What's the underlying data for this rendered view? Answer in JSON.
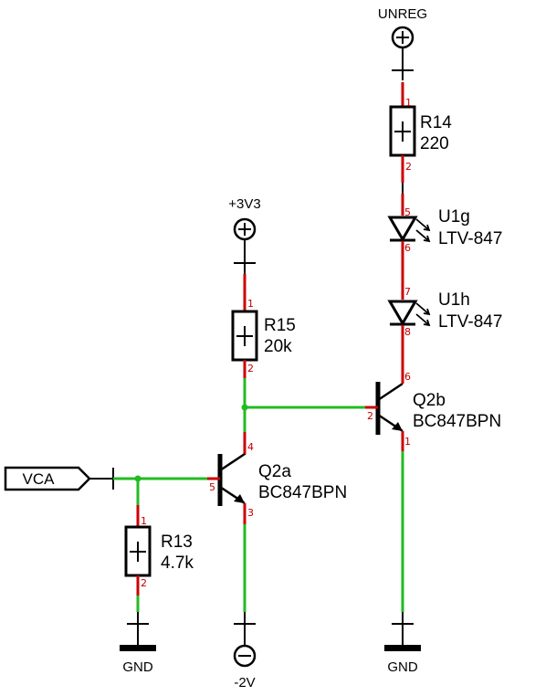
{
  "nets": {
    "unreg": "UNREG",
    "v3v3": "+3V3",
    "gnd_left": "GND",
    "gnd_right": "GND",
    "vneg": "-2V",
    "vca": "VCA"
  },
  "components": {
    "r14": {
      "ref": "R14",
      "value": "220",
      "pin_a": "1",
      "pin_b": "2"
    },
    "r15": {
      "ref": "R15",
      "value": "20k",
      "pin_a": "1",
      "pin_b": "2"
    },
    "r13": {
      "ref": "R13",
      "value": "4.7k",
      "pin_a": "1",
      "pin_b": "2"
    },
    "u1g": {
      "ref": "U1g",
      "value": "LTV-847",
      "pin_a": "5",
      "pin_k": "6"
    },
    "u1h": {
      "ref": "U1h",
      "value": "LTV-847",
      "pin_a": "7",
      "pin_k": "8"
    },
    "q2a": {
      "ref": "Q2a",
      "value": "BC847BPN",
      "pin_c": "4",
      "pin_b": "5",
      "pin_e": "3"
    },
    "q2b": {
      "ref": "Q2b",
      "value": "BC847BPN",
      "pin_c": "6",
      "pin_b": "2",
      "pin_e": "1"
    }
  },
  "colors": {
    "wire": "#22bb22",
    "lead": "#cc0000",
    "pin_number": "#c00000",
    "body": "#000000",
    "background": "#ffffff"
  }
}
